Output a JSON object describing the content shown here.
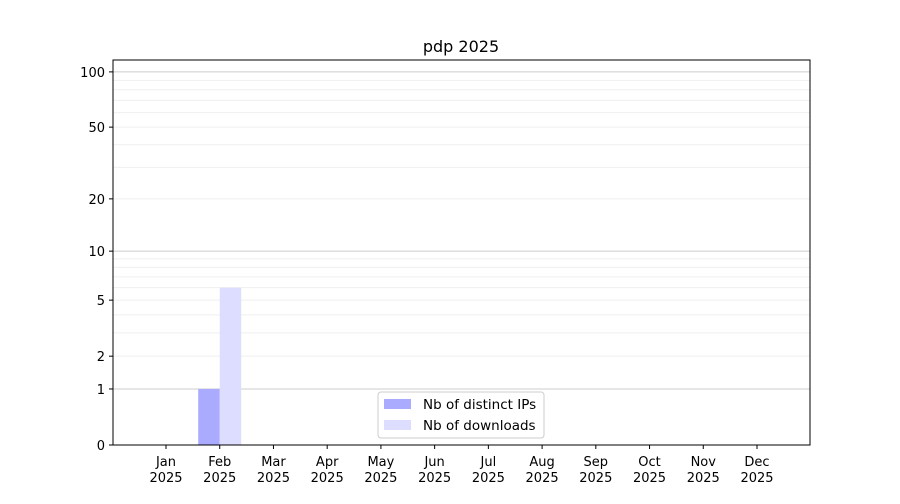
{
  "chart_data": {
    "type": "bar",
    "title": "pdp 2025",
    "xlabel": "",
    "ylabel": "",
    "y_scale": "log(1+y)",
    "ylim": [
      0,
      116
    ],
    "y_ticks": [
      0,
      1,
      2,
      5,
      10,
      20,
      50,
      100
    ],
    "y_tick_labels": [
      "0",
      "1",
      "2",
      "5",
      "10",
      "20",
      "50",
      "100"
    ],
    "grid": true,
    "legend_position": "lower-center",
    "categories": [
      "Jan\n2025",
      "Feb\n2025",
      "Mar\n2025",
      "Apr\n2025",
      "May\n2025",
      "Jun\n2025",
      "Jul\n2025",
      "Aug\n2025",
      "Sep\n2025",
      "Oct\n2025",
      "Nov\n2025",
      "Dec\n2025"
    ],
    "category_labels": [
      [
        "Jan",
        "2025"
      ],
      [
        "Feb",
        "2025"
      ],
      [
        "Mar",
        "2025"
      ],
      [
        "Apr",
        "2025"
      ],
      [
        "May",
        "2025"
      ],
      [
        "Jun",
        "2025"
      ],
      [
        "Jul",
        "2025"
      ],
      [
        "Aug",
        "2025"
      ],
      [
        "Sep",
        "2025"
      ],
      [
        "Oct",
        "2025"
      ],
      [
        "Nov",
        "2025"
      ],
      [
        "Dec",
        "2025"
      ]
    ],
    "series": [
      {
        "name": "Nb of distinct IPs",
        "color": "#aaaaff",
        "values": [
          0,
          1,
          0,
          0,
          0,
          0,
          0,
          0,
          0,
          0,
          0,
          0
        ]
      },
      {
        "name": "Nb of downloads",
        "color": "#ddddff",
        "values": [
          0,
          6,
          0,
          0,
          0,
          0,
          0,
          0,
          0,
          0,
          0,
          0
        ]
      }
    ]
  }
}
